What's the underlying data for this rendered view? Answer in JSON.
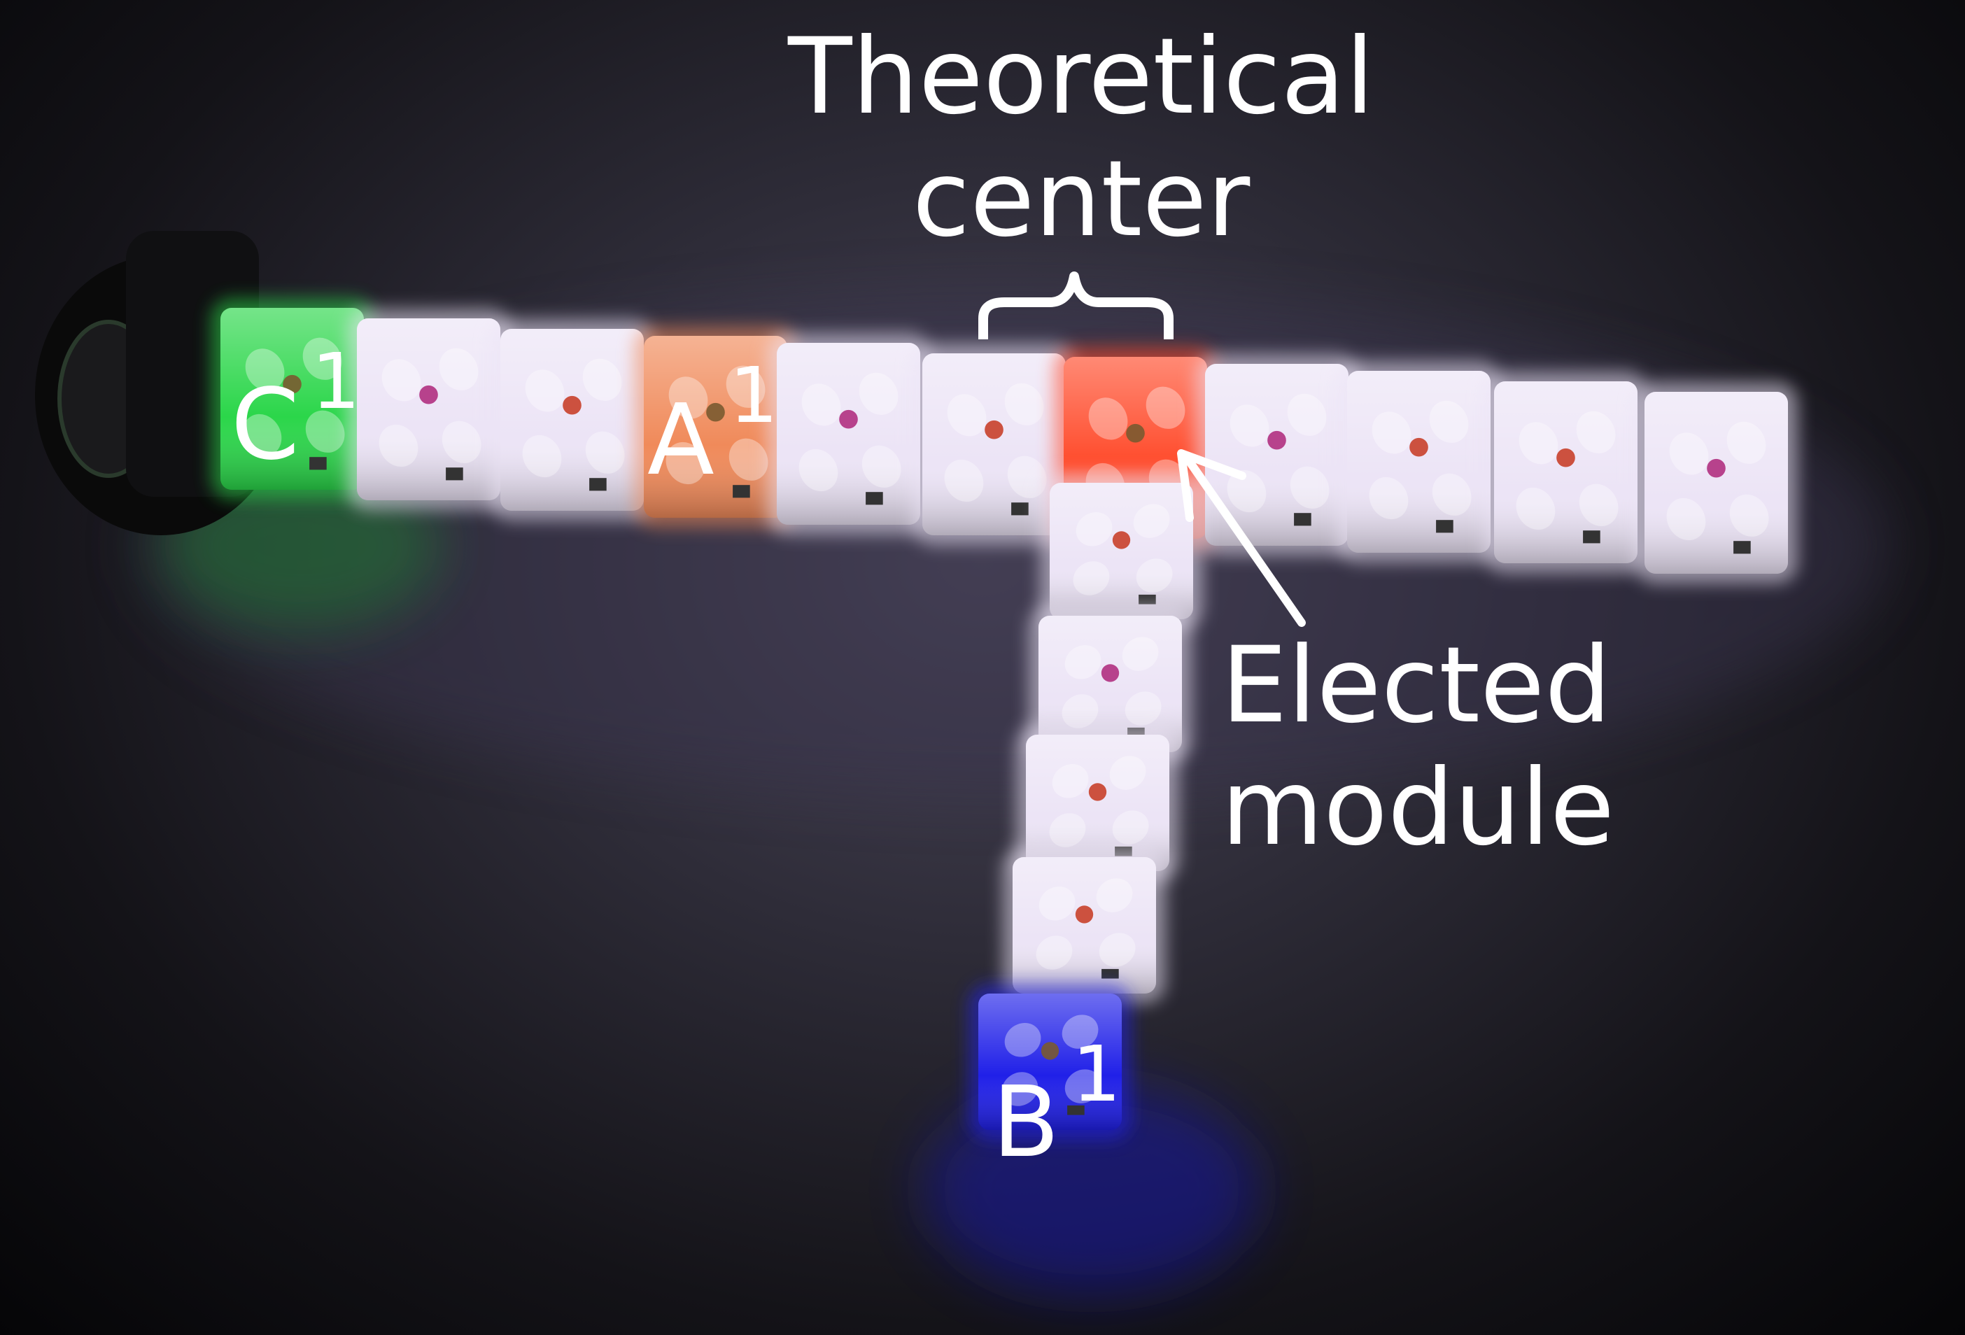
{
  "labels": {
    "theoretical_line1": "Theoretical",
    "theoretical_line2": "center",
    "elected_line1": "Elected",
    "elected_line2": "module",
    "c_letter": "C",
    "c_sup": "1",
    "a_letter": "A",
    "a_sup": "1",
    "b_letter": "B",
    "b_sup": "1"
  },
  "colors": {
    "text": "#ffffff",
    "module_green": "#2bd64a",
    "module_orange": "#f08a5a",
    "module_red": "#ff4a2a",
    "module_blue": "#2020e8",
    "module_white": "#ece4f6",
    "module_glow": "#e0d0ff",
    "led_red": "#c8402a",
    "led_magenta": "#b03080",
    "background_dark": "#0a0a0d"
  },
  "photo_contents": {
    "horizontal_modules": [
      "green",
      "white",
      "white",
      "orange",
      "white",
      "white",
      "red",
      "white",
      "white",
      "white",
      "white"
    ],
    "vertical_modules": [
      "white",
      "white",
      "white",
      "white",
      "blue"
    ],
    "annotations": [
      "brace",
      "arrow"
    ]
  }
}
